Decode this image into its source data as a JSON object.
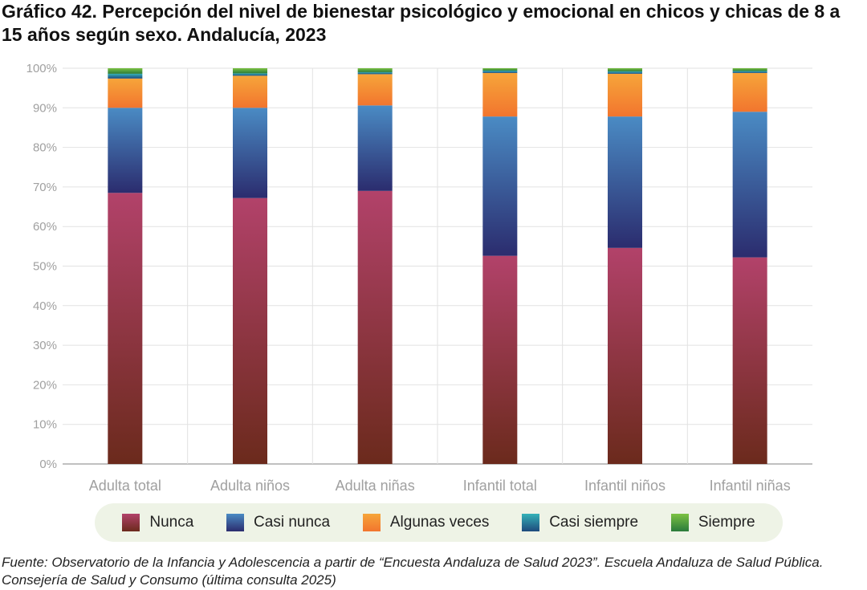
{
  "title": "Gráfico 42. Percepción del nivel de bienestar psicológico y emocional en chicos y chicas de 8 a 15 años según sexo. Andalucía, 2023",
  "source": "Fuente: Observatorio de la Infancia y Adolescencia a partir de “Encuesta Andaluza de Salud 2023”. Escuela Andaluza de Salud Pública. Consejería de Salud y Consumo (última consulta 2025)",
  "legend": [
    {
      "label": "Nunca",
      "top": "#b2426a",
      "bottom": "#6b2a1c"
    },
    {
      "label": "Casi nunca",
      "top": "#4a8bc4",
      "bottom": "#2b2c6e"
    },
    {
      "label": "Algunas veces",
      "top": "#f6a53a",
      "bottom": "#f2752e"
    },
    {
      "label": "Casi siempre",
      "top": "#35b2b8",
      "bottom": "#1e4a7c"
    },
    {
      "label": "Siempre",
      "top": "#7cc242",
      "bottom": "#2a7a3b"
    }
  ],
  "chart_data": {
    "type": "bar",
    "stacked": true,
    "categories": [
      "Adulta total",
      "Adulta niños",
      "Adulta niñas",
      "Infantil total",
      "Infantil niños",
      "Infantil niñas"
    ],
    "series": [
      {
        "name": "Nunca",
        "values": [
          68.5,
          67.2,
          69.0,
          52.6,
          54.6,
          52.2
        ]
      },
      {
        "name": "Casi nunca",
        "values": [
          21.5,
          22.8,
          21.6,
          35.2,
          33.2,
          36.8
        ]
      },
      {
        "name": "Algunas veces",
        "values": [
          7.4,
          8.1,
          7.9,
          11.0,
          10.8,
          9.8
        ]
      },
      {
        "name": "Casi siempre",
        "values": [
          1.2,
          0.6,
          0.5,
          0.6,
          0.6,
          0.5
        ]
      },
      {
        "name": "Siempre",
        "values": [
          1.4,
          1.3,
          1.0,
          0.6,
          0.8,
          0.7
        ]
      }
    ],
    "yticks": [
      "0%",
      "10%",
      "20%",
      "30%",
      "40%",
      "50%",
      "60%",
      "70%",
      "80%",
      "90%",
      "100%"
    ],
    "ylim": [
      0,
      100
    ],
    "grid": true,
    "legend_position": "bottom"
  }
}
